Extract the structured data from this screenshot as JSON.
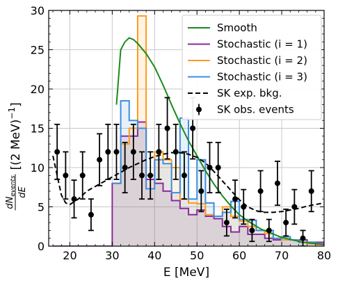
{
  "chart_data": {
    "type": "line",
    "xlabel": "E [MeV]",
    "ylabel": "dN_events/dE [(2 MeV)^-1]",
    "ylabel_display": {
      "numerator_main": "dN",
      "numerator_sub": "events",
      "denominator": "dE",
      "unit_text": "[(2 MeV)",
      "unit_exp": "−1",
      "unit_close": "]"
    },
    "xlim": [
      15,
      80
    ],
    "ylim": [
      0,
      30
    ],
    "grid": true,
    "legend_position": "top-right",
    "x_ticks": [
      20,
      30,
      40,
      50,
      60,
      70,
      80
    ],
    "y_ticks": [
      0,
      5,
      10,
      15,
      20,
      25,
      30
    ],
    "x_tick_labels": [
      "20",
      "30",
      "40",
      "50",
      "60",
      "70",
      "80"
    ],
    "y_tick_labels": [
      "0",
      "5",
      "10",
      "15",
      "20",
      "25",
      "30"
    ],
    "legend": [
      {
        "label": "Smooth",
        "color": "#1a8a1a",
        "style": "solid"
      },
      {
        "label": "Stochastic (i = 1)",
        "color": "#8b2a9c",
        "style": "step"
      },
      {
        "label": "Stochastic (i = 2)",
        "color": "#ff9a1a",
        "style": "step"
      },
      {
        "label": "Stochastic (i = 3)",
        "color": "#3d8de0",
        "style": "step"
      },
      {
        "label": "SK exp. bkg.",
        "color": "#000000",
        "style": "dashed"
      },
      {
        "label": "SK obs. events",
        "color": "#000000",
        "style": "errorbar"
      }
    ],
    "series": [
      {
        "name": "Smooth",
        "kind": "line",
        "color": "#1a8a1a",
        "x": [
          31,
          32,
          33,
          34,
          35,
          36,
          38,
          40,
          42,
          44,
          46,
          48,
          50,
          52,
          54,
          56,
          58,
          60,
          62,
          65,
          70,
          75,
          80
        ],
        "y": [
          18,
          25,
          26,
          26.5,
          26.3,
          25.8,
          24.5,
          22.8,
          20.5,
          18,
          15.6,
          13.4,
          11.5,
          9.6,
          7.9,
          6.4,
          5.1,
          4.0,
          3.2,
          2.2,
          1.1,
          0.5,
          0.2
        ]
      },
      {
        "name": "Stochastic (i = 1)",
        "kind": "step",
        "color": "#8b2a9c",
        "fill": "rgba(139,42,156,0.12)",
        "edges": [
          16,
          18,
          20,
          22,
          24,
          26,
          28,
          30,
          32,
          34,
          36,
          38,
          40,
          42,
          44,
          46,
          48,
          50,
          52,
          54,
          56,
          58,
          60,
          62,
          64,
          66,
          68,
          70,
          72,
          74,
          76,
          78,
          80
        ],
        "values": [
          0,
          0,
          0,
          0,
          0,
          0,
          0,
          8,
          14,
          14,
          15.8,
          8.5,
          8,
          7,
          5.8,
          4.8,
          4,
          4.6,
          3.8,
          3.5,
          2.5,
          1.8,
          2.5,
          1.5,
          1.5,
          1,
          0.8,
          1.2,
          0.8,
          0.8,
          0.5,
          0.5
        ]
      },
      {
        "name": "Stochastic (i = 2)",
        "kind": "step",
        "color": "#ff9a1a",
        "fill": "rgba(255,154,26,0.12)",
        "edges": [
          30,
          32,
          34,
          36,
          38,
          40,
          42,
          44,
          46,
          48,
          50,
          52,
          54,
          56,
          58,
          60,
          62,
          64,
          66,
          68,
          70,
          72,
          74,
          76,
          78,
          80
        ],
        "values": [
          8,
          13,
          15,
          29.3,
          9,
          12,
          11,
          10,
          6,
          5.5,
          5.4,
          4,
          3.8,
          5,
          3.8,
          3.2,
          2.5,
          2,
          1.6,
          1,
          0.8,
          0.8,
          0.5,
          0.3,
          0.2
        ]
      },
      {
        "name": "Stochastic (i = 3)",
        "kind": "step",
        "color": "#3d8de0",
        "fill": "rgba(61,141,224,0.12)",
        "edges": [
          30,
          32,
          34,
          36,
          38,
          40,
          42,
          44,
          46,
          48,
          50,
          52,
          54,
          56,
          58,
          60,
          62,
          64,
          66,
          68,
          70,
          72,
          74,
          76,
          78,
          80
        ],
        "values": [
          8,
          18.5,
          16,
          15,
          7.3,
          11,
          10.5,
          6.8,
          16.3,
          6,
          11,
          5.5,
          3.8,
          4.3,
          5.7,
          3.4,
          3.3,
          2,
          2,
          1,
          1.2,
          0.8,
          0.5,
          0.5,
          0.3
        ]
      },
      {
        "name": "SK exp. bkg.",
        "kind": "dashed",
        "color": "#000000",
        "x": [
          16,
          17,
          18,
          19,
          20,
          22,
          24,
          26,
          28,
          30,
          32,
          34,
          36,
          38,
          40,
          42,
          44,
          46,
          48,
          50,
          52,
          54,
          56,
          58,
          60,
          62,
          64,
          66,
          68,
          70,
          72,
          74,
          76,
          78,
          80
        ],
        "y": [
          11.5,
          9,
          6.5,
          5.5,
          5.3,
          6,
          7,
          7.6,
          8.2,
          8.8,
          9.4,
          10,
          10.5,
          11,
          11.4,
          11.7,
          11.9,
          11.9,
          11.7,
          11.3,
          10.6,
          9.5,
          8.3,
          7.1,
          5.9,
          5,
          4.5,
          4.3,
          4.3,
          4.4,
          4.6,
          4.8,
          5.1,
          5.3,
          5.5
        ]
      },
      {
        "name": "SK obs. events",
        "kind": "errorbar",
        "color": "#000000",
        "points": [
          {
            "x": 17,
            "y": 12,
            "err": 3.5
          },
          {
            "x": 19,
            "y": 9,
            "err": 3
          },
          {
            "x": 21,
            "y": 6,
            "err": 2.4
          },
          {
            "x": 23,
            "y": 9,
            "err": 3
          },
          {
            "x": 25,
            "y": 4,
            "err": 2
          },
          {
            "x": 27,
            "y": 11,
            "err": 3.3
          },
          {
            "x": 29,
            "y": 12,
            "err": 3.5
          },
          {
            "x": 31,
            "y": 12,
            "err": 3.5
          },
          {
            "x": 33,
            "y": 10,
            "err": 3.2
          },
          {
            "x": 35,
            "y": 12,
            "err": 3.5
          },
          {
            "x": 37,
            "y": 9,
            "err": 3
          },
          {
            "x": 39,
            "y": 9,
            "err": 3
          },
          {
            "x": 41,
            "y": 12,
            "err": 3.5
          },
          {
            "x": 43,
            "y": 15,
            "err": 3.9
          },
          {
            "x": 45,
            "y": 12,
            "err": 3.5
          },
          {
            "x": 47,
            "y": 9,
            "err": 3
          },
          {
            "x": 49,
            "y": 15,
            "err": 3.9
          },
          {
            "x": 51,
            "y": 7,
            "err": 2.6
          },
          {
            "x": 53,
            "y": 10,
            "err": 3.2
          },
          {
            "x": 55,
            "y": 10,
            "err": 3.2
          },
          {
            "x": 57,
            "y": 3,
            "err": 1.7
          },
          {
            "x": 59,
            "y": 6,
            "err": 2.4
          },
          {
            "x": 61,
            "y": 5,
            "err": 2.2
          },
          {
            "x": 63,
            "y": 2,
            "err": 1.4
          },
          {
            "x": 65,
            "y": 7,
            "err": 2.6
          },
          {
            "x": 67,
            "y": 2,
            "err": 1.4
          },
          {
            "x": 69,
            "y": 8,
            "err": 2.8
          },
          {
            "x": 71,
            "y": 3,
            "err": 1.7
          },
          {
            "x": 73,
            "y": 5,
            "err": 2.2
          },
          {
            "x": 75,
            "y": 1,
            "err": 1
          },
          {
            "x": 77,
            "y": 7,
            "err": 2.6
          }
        ]
      }
    ]
  }
}
